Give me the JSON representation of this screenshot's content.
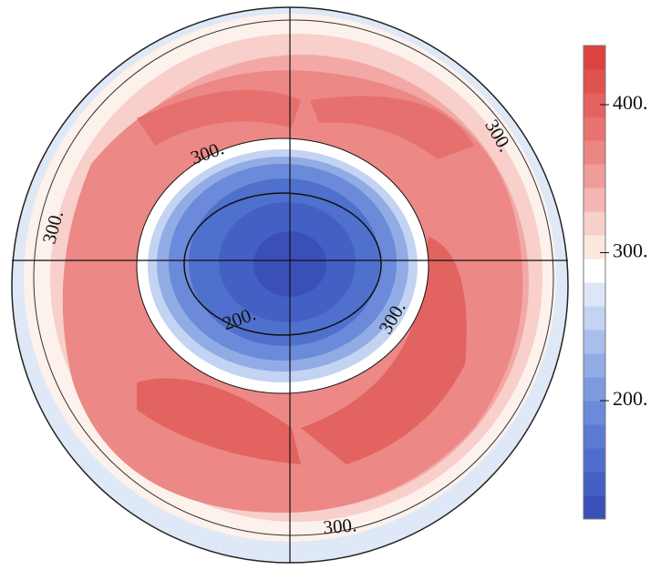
{
  "map": {
    "contour_labels": [
      "300.",
      "300.",
      "300.",
      "200.",
      "300.",
      "300."
    ]
  },
  "colorbar": {
    "lim": [
      120,
      440
    ],
    "ticks": [
      {
        "value": 200,
        "label": "200."
      },
      {
        "value": 300,
        "label": "300."
      },
      {
        "value": 400,
        "label": "400."
      }
    ],
    "colors": [
      "#3a4fb8",
      "#4560c4",
      "#4f6dcc",
      "#5b7bd3",
      "#6b8ad9",
      "#7d9ade",
      "#91abe4",
      "#a8bfeb",
      "#c3d3f2",
      "#dde6f7",
      "#ffffff",
      "#fbe7dd",
      "#f8cfca",
      "#f5b5b2",
      "#f09c99",
      "#ec8683",
      "#e87370",
      "#e4625f",
      "#e0524f",
      "#dc4341"
    ]
  }
}
